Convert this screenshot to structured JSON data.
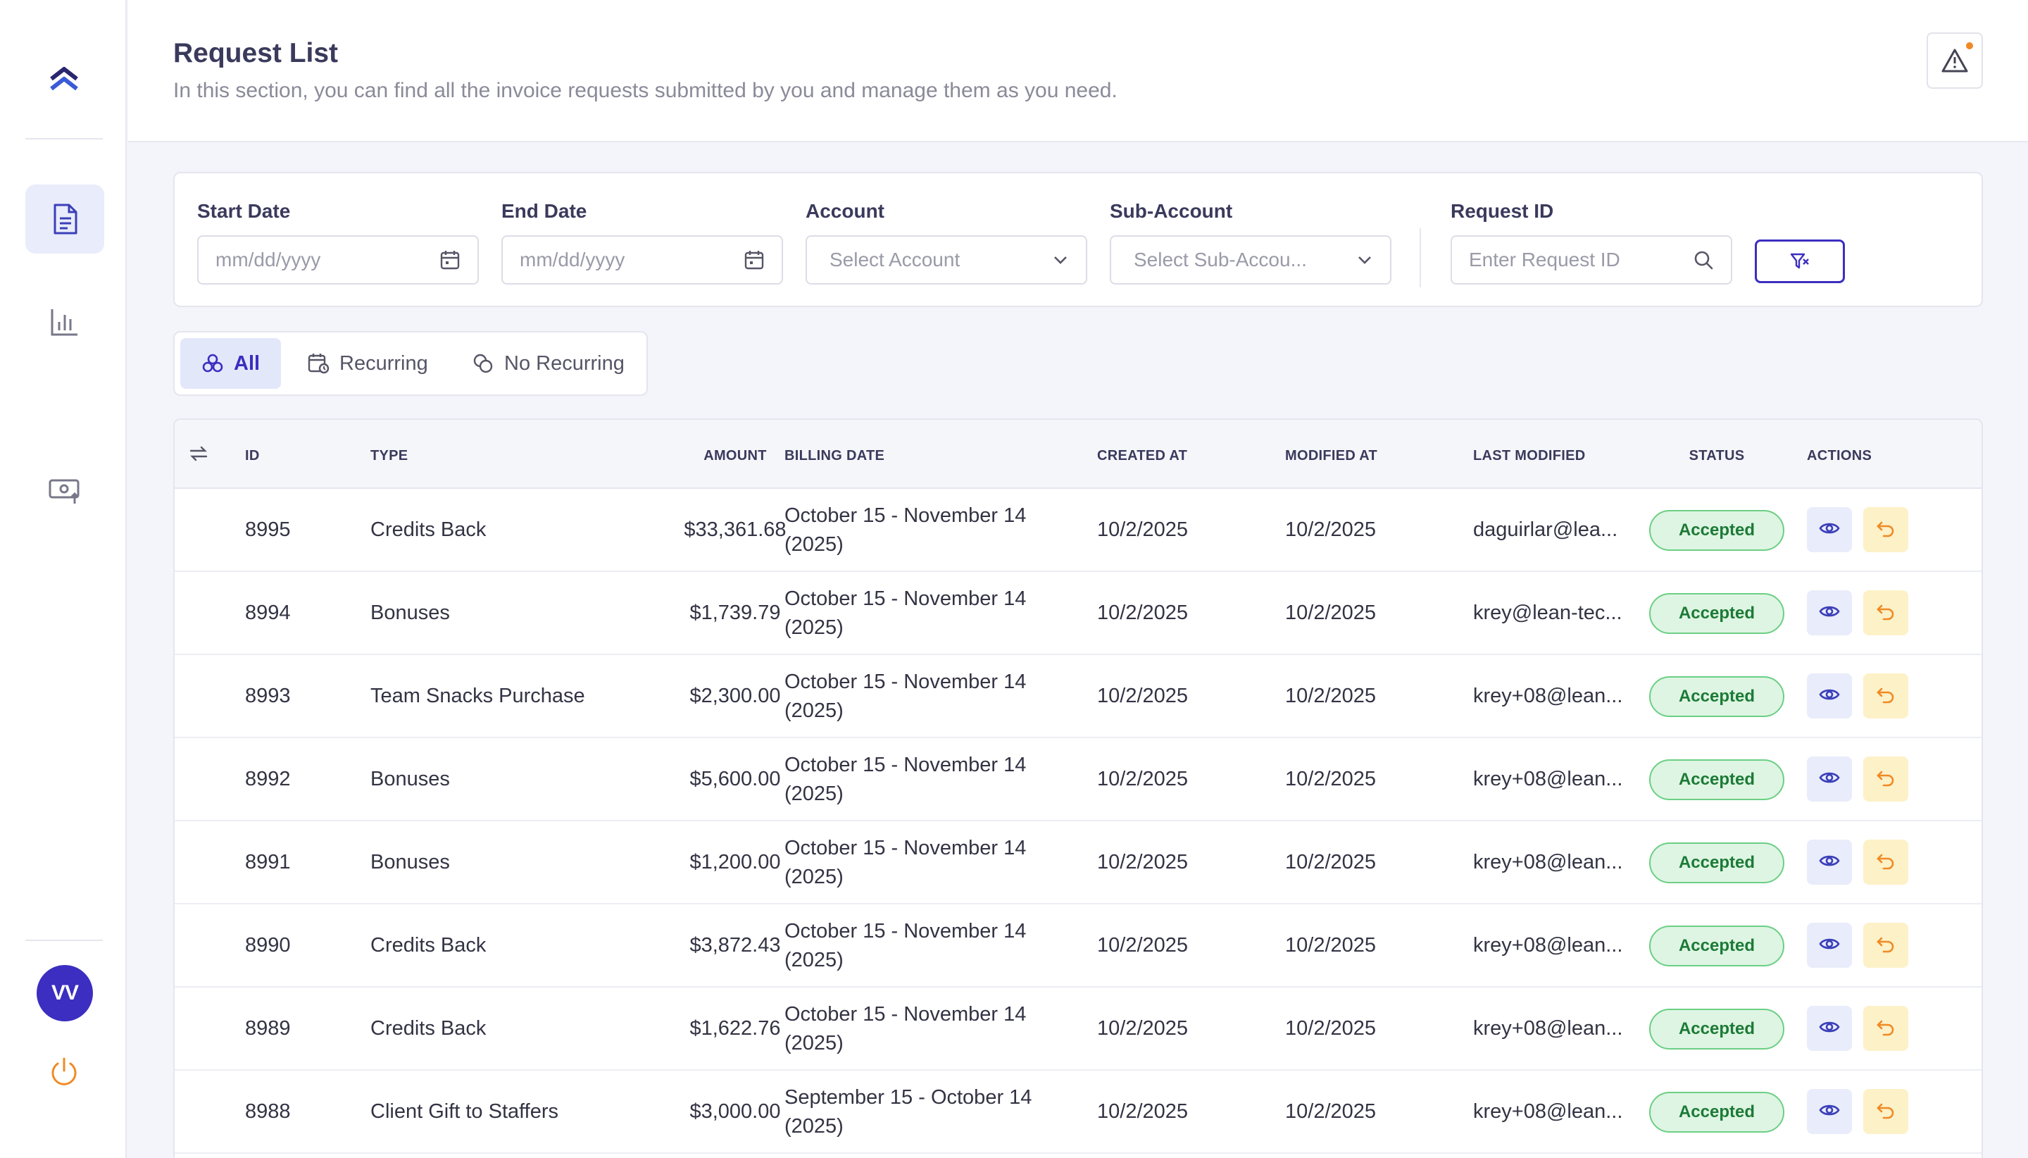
{
  "sidebar": {
    "icons": [
      "logo-chevrons-icon",
      "document-icon",
      "bar-chart-icon",
      "money-upload-icon"
    ],
    "avatar_initials": "VV",
    "colors": {
      "accent": "#3b2ec0",
      "power": "#f08a24"
    }
  },
  "header": {
    "title": "Request List",
    "subtitle": "In this section, you can find all the invoice requests submitted by you and manage them as you need."
  },
  "filters": {
    "start_date": {
      "label": "Start Date",
      "placeholder": "mm/dd/yyyy"
    },
    "end_date": {
      "label": "End Date",
      "placeholder": "mm/dd/yyyy"
    },
    "account": {
      "label": "Account",
      "placeholder": "Select Account"
    },
    "sub_account": {
      "label": "Sub-Account",
      "placeholder": "Select Sub-Accou..."
    },
    "request_id": {
      "label": "Request ID",
      "placeholder": "Enter Request ID"
    }
  },
  "tabs": [
    {
      "label": "All",
      "active": true
    },
    {
      "label": "Recurring",
      "active": false
    },
    {
      "label": "No Recurring",
      "active": false
    }
  ],
  "table": {
    "columns": [
      "ID",
      "TYPE",
      "AMOUNT",
      "BILLING DATE",
      "CREATED AT",
      "MODIFIED AT",
      "LAST MODIFIED",
      "STATUS",
      "ACTIONS"
    ],
    "rows": [
      {
        "id": "8995",
        "type": "Credits Back",
        "amount": "$33,361.68",
        "billing_line1": "October 15 - November 14",
        "billing_line2": "(2025)",
        "created": "10/2/2025",
        "modified": "10/2/2025",
        "last_modified": "daguirlar@lea...",
        "status": "Accepted"
      },
      {
        "id": "8994",
        "type": "Bonuses",
        "amount": "$1,739.79",
        "billing_line1": "October 15 - November 14",
        "billing_line2": "(2025)",
        "created": "10/2/2025",
        "modified": "10/2/2025",
        "last_modified": "krey@lean-tec...",
        "status": "Accepted"
      },
      {
        "id": "8993",
        "type": "Team Snacks Purchase",
        "amount": "$2,300.00",
        "billing_line1": "October 15 - November 14",
        "billing_line2": "(2025)",
        "created": "10/2/2025",
        "modified": "10/2/2025",
        "last_modified": "krey+08@lean...",
        "status": "Accepted"
      },
      {
        "id": "8992",
        "type": "Bonuses",
        "amount": "$5,600.00",
        "billing_line1": "October 15 - November 14",
        "billing_line2": "(2025)",
        "created": "10/2/2025",
        "modified": "10/2/2025",
        "last_modified": "krey+08@lean...",
        "status": "Accepted"
      },
      {
        "id": "8991",
        "type": "Bonuses",
        "amount": "$1,200.00",
        "billing_line1": "October 15 - November 14",
        "billing_line2": "(2025)",
        "created": "10/2/2025",
        "modified": "10/2/2025",
        "last_modified": "krey+08@lean...",
        "status": "Accepted"
      },
      {
        "id": "8990",
        "type": "Credits Back",
        "amount": "$3,872.43",
        "billing_line1": "October 15 - November 14",
        "billing_line2": "(2025)",
        "created": "10/2/2025",
        "modified": "10/2/2025",
        "last_modified": "krey+08@lean...",
        "status": "Accepted"
      },
      {
        "id": "8989",
        "type": "Credits Back",
        "amount": "$1,622.76",
        "billing_line1": "October 15 - November 14",
        "billing_line2": "(2025)",
        "created": "10/2/2025",
        "modified": "10/2/2025",
        "last_modified": "krey+08@lean...",
        "status": "Accepted"
      },
      {
        "id": "8988",
        "type": "Client Gift to Staffers",
        "amount": "$3,000.00",
        "billing_line1": "September 15 - October 14",
        "billing_line2": "(2025)",
        "created": "10/2/2025",
        "modified": "10/2/2025",
        "last_modified": "krey+08@lean...",
        "status": "Accepted"
      }
    ]
  }
}
